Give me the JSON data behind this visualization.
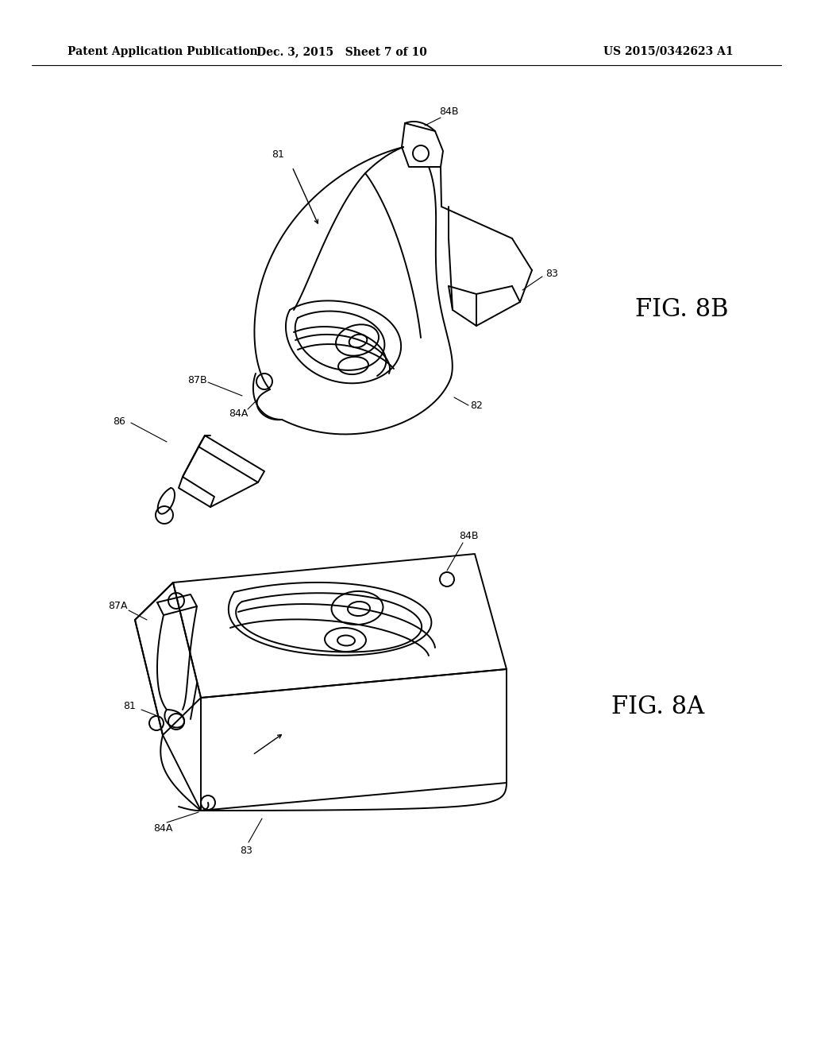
{
  "background_color": "#ffffff",
  "line_color": "#000000",
  "header_left": "Patent Application Publication",
  "header_mid": "Dec. 3, 2015   Sheet 7 of 10",
  "header_right": "US 2015/0342623 A1",
  "fig_8a_label": "FIG. 8A",
  "fig_8b_label": "FIG. 8B",
  "header_fontsize": 10,
  "label_fontsize": 9,
  "fig_label_fontsize": 22
}
